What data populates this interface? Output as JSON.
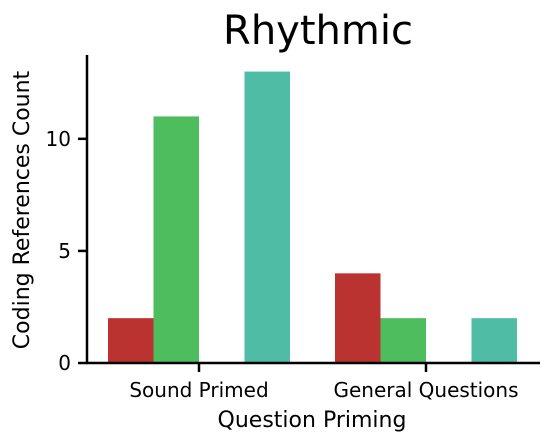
{
  "chart_data": {
    "type": "bar",
    "title": "Rhythmic",
    "xlabel": "Question Priming",
    "ylabel": "Coding References Count",
    "categories": [
      "Sound Primed",
      "General Questions"
    ],
    "series": [
      {
        "color": "#bb3330",
        "values": [
          2,
          4
        ]
      },
      {
        "color": "#4ebd5e",
        "values": [
          11,
          2
        ]
      },
      {
        "color": "#3498db",
        "values": [
          0,
          0
        ]
      },
      {
        "color": "#4fbca6",
        "values": [
          13,
          2
        ]
      }
    ],
    "yticks": [
      0,
      5,
      10
    ],
    "ylim": [
      0,
      13.65
    ],
    "grid": false,
    "legend": "none"
  }
}
